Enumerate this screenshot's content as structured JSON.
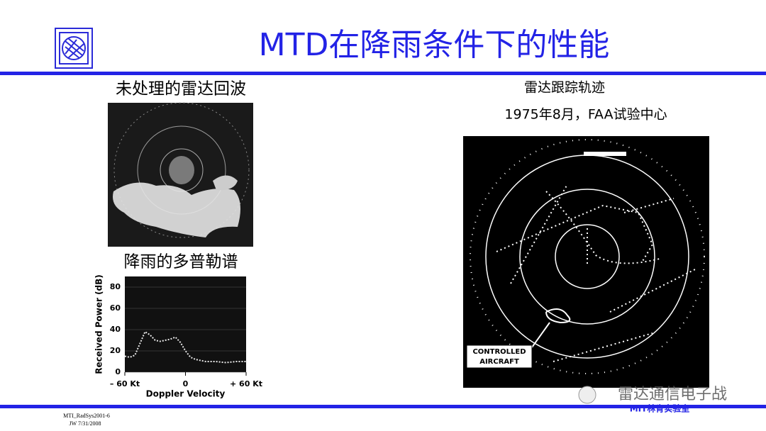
{
  "header": {
    "title": "MTD在降雨条件下的性能"
  },
  "left": {
    "echo_caption": "未处理的雷达回波",
    "spectrum_caption": "降雨的多普勒谱"
  },
  "right": {
    "caption": "雷达跟踪轨迹",
    "subcaption": "1975年8月，FAA试验中心",
    "label": [
      "CONTROLLED",
      "AIRCRAFT"
    ]
  },
  "chart_data": {
    "type": "line",
    "y_label": "Received Power (dB)",
    "x_label": "Doppler Velocity",
    "xlim": [
      -60,
      60
    ],
    "xticks": [
      {
        "value": -60,
        "label": "– 60 Kt"
      },
      0,
      {
        "value": 60,
        "label": "+ 60 Kt"
      }
    ],
    "ylim": [
      0,
      90
    ],
    "yticks": [
      0,
      20,
      40,
      60,
      80
    ],
    "grid": true,
    "color": "#e8e8e8",
    "x": [
      -60,
      -55,
      -50,
      -45,
      -40,
      -35,
      -30,
      -25,
      -20,
      -15,
      -10,
      -5,
      0,
      5,
      10,
      15,
      20,
      30,
      40,
      50,
      60
    ],
    "values": [
      15,
      14,
      16,
      27,
      38,
      35,
      30,
      29,
      30,
      31,
      33,
      28,
      20,
      14,
      12,
      11,
      10,
      10,
      9,
      10,
      10
    ]
  },
  "footer": {
    "doc_id": "MTI_RadSys2001-6",
    "author_date": "JW 7/31/2008",
    "lab": "MIT林肯实验室",
    "watermark": "雷达通信电子战"
  }
}
